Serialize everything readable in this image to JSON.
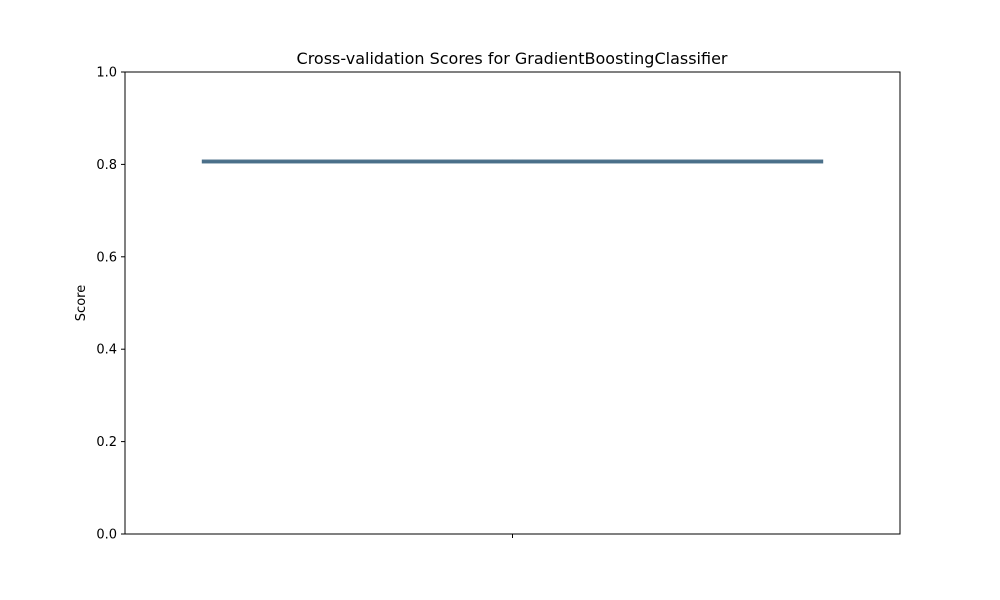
{
  "chart_data": {
    "type": "box",
    "title": "Cross-validation Scores for GradientBoostingClassifier",
    "xlabel": "",
    "ylabel": "Score",
    "ylim": [
      0,
      1
    ],
    "yticks": [
      0.0,
      0.2,
      0.4,
      0.6,
      0.8,
      1.0
    ],
    "ytick_labels": [
      "0.0",
      "0.2",
      "0.4",
      "0.6",
      "0.8",
      "1.0"
    ],
    "grid": false,
    "series": [
      {
        "stats": {
          "min": 0.803,
          "q1": 0.804,
          "median": 0.806,
          "q3": 0.809,
          "max": 0.81
        },
        "color": "#4a6f89",
        "fill": "#c9ced4"
      }
    ]
  }
}
